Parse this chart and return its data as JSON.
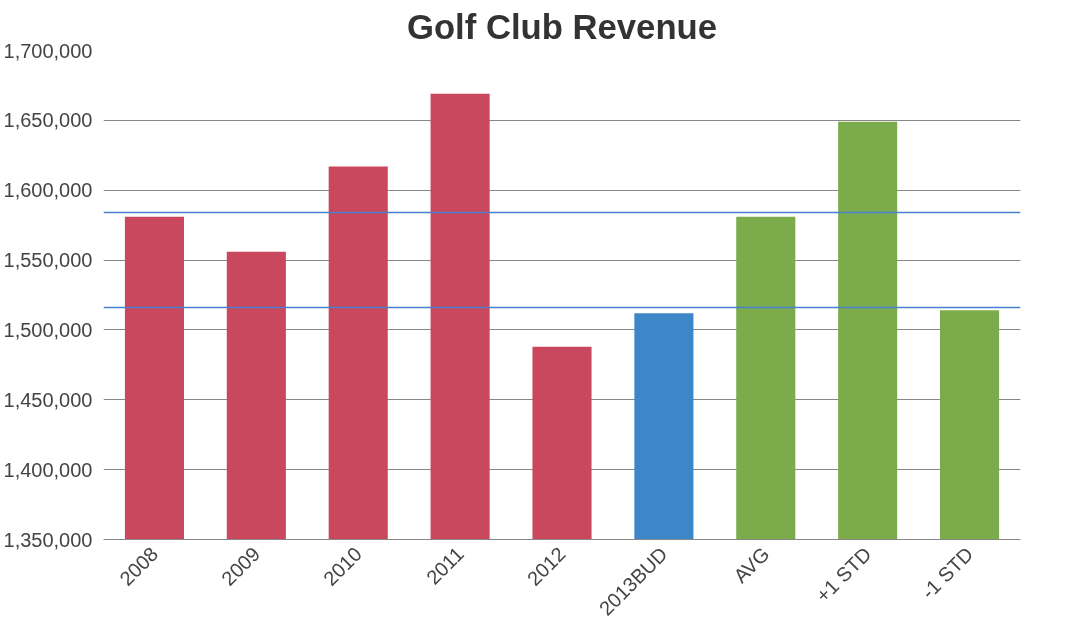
{
  "chart_data": {
    "type": "bar",
    "title": "Golf Club Revenue",
    "categories": [
      "2008",
      "2009",
      "2010",
      "2011",
      "2012",
      "2013BUD",
      "AVG",
      "+1 STD",
      "-1 STD"
    ],
    "values": [
      1581000,
      1556000,
      1617000,
      1669000,
      1488000,
      1512000,
      1581000,
      1649000,
      1514000
    ],
    "colors": [
      "#c9485d",
      "#c9485d",
      "#c9485d",
      "#c9485d",
      "#c9485d",
      "#3d87c9",
      "#7bab4a",
      "#7bab4a",
      "#7bab4a"
    ],
    "ylim": [
      1350000,
      1700000
    ],
    "yticks": [
      {
        "value": 1350000,
        "label": "1,350,000"
      },
      {
        "value": 1400000,
        "label": "1,400,000"
      },
      {
        "value": 1450000,
        "label": "1,450,000"
      },
      {
        "value": 1500000,
        "label": "1,500,000"
      },
      {
        "value": 1550000,
        "label": "1,550,000"
      },
      {
        "value": 1600000,
        "label": "1,600,000"
      },
      {
        "value": 1650000,
        "label": "1,650,000"
      },
      {
        "value": 1700000,
        "label": "1,700,000"
      }
    ],
    "grid": "y",
    "ref_lines": [
      {
        "axis": "y",
        "value": 1584000,
        "label": null,
        "color": "#4a7fd0"
      },
      {
        "axis": "y",
        "value": 1516000,
        "label": null,
        "color": "#4a7fd0"
      }
    ]
  }
}
